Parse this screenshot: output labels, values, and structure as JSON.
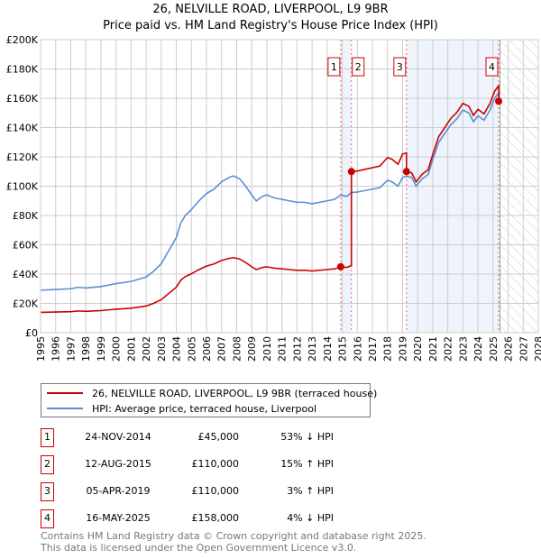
{
  "title": "26, NELVILLE ROAD, LIVERPOOL, L9 9BR",
  "subtitle": "Price paid vs. HM Land Registry's House Price Index (HPI)",
  "chart_data": {
    "type": "line",
    "xlim": [
      1995,
      2028
    ],
    "ylim": [
      0,
      200000
    ],
    "x_ticks": [
      "1995",
      "1996",
      "1997",
      "1998",
      "1999",
      "2000",
      "2001",
      "2002",
      "2003",
      "2004",
      "2005",
      "2006",
      "2007",
      "2008",
      "2009",
      "2010",
      "2011",
      "2012",
      "2013",
      "2014",
      "2015",
      "2016",
      "2017",
      "2018",
      "2019",
      "2020",
      "2021",
      "2022",
      "2023",
      "2024",
      "2025",
      "2026",
      "2027",
      "2028"
    ],
    "y_ticks": [
      {
        "v": 0,
        "label": "£0"
      },
      {
        "v": 20000,
        "label": "£20K"
      },
      {
        "v": 40000,
        "label": "£40K"
      },
      {
        "v": 60000,
        "label": "£60K"
      },
      {
        "v": 80000,
        "label": "£80K"
      },
      {
        "v": 100000,
        "label": "£100K"
      },
      {
        "v": 120000,
        "label": "£120K"
      },
      {
        "v": 140000,
        "label": "£140K"
      },
      {
        "v": 160000,
        "label": "£160K"
      },
      {
        "v": 180000,
        "label": "£180K"
      },
      {
        "v": 200000,
        "label": "£200K"
      }
    ],
    "grid": true,
    "hpi": {
      "name": "HPI: Average price, terraced house, Liverpool",
      "color": "#5b8fd4",
      "x": [
        1995,
        1996,
        1997,
        1997.5,
        1998,
        1999,
        2000,
        2001,
        2002,
        2002.5,
        2003,
        2003.5,
        2004,
        2004.3,
        2004.6,
        2005,
        2005.5,
        2006,
        2006.5,
        2007,
        2007.5,
        2007.8,
        2008.2,
        2008.6,
        2009,
        2009.3,
        2009.7,
        2010,
        2010.5,
        2011,
        2011.5,
        2012,
        2012.5,
        2013,
        2013.5,
        2014,
        2014.5,
        2014.9,
        2015.3,
        2015.6,
        2016,
        2016.5,
        2017,
        2017.5,
        2018,
        2018.3,
        2018.7,
        2019,
        2019.26,
        2019.6,
        2019.9,
        2020.3,
        2020.7,
        2021,
        2021.4,
        2021.8,
        2022.2,
        2022.6,
        2023,
        2023.4,
        2023.7,
        2024,
        2024.4,
        2024.8,
        2025.1,
        2025.4
      ],
      "y": [
        29000,
        29500,
        30000,
        31000,
        30500,
        31500,
        33500,
        35000,
        38000,
        42000,
        47000,
        56000,
        65000,
        75000,
        80000,
        84000,
        90000,
        95000,
        98000,
        103000,
        106000,
        107000,
        105000,
        100000,
        94000,
        90000,
        93000,
        94000,
        92000,
        91000,
        90000,
        89000,
        89000,
        88000,
        89000,
        90000,
        91000,
        94000,
        93000,
        95700,
        96000,
        97000,
        98000,
        99000,
        104000,
        103000,
        100000,
        106000,
        106800,
        106000,
        100000,
        105000,
        108000,
        118000,
        130000,
        136000,
        142000,
        146000,
        152000,
        150000,
        144000,
        148000,
        145000,
        152000,
        160000,
        164000
      ]
    },
    "property": {
      "name": "26, NELVILLE ROAD, LIVERPOOL, L9 9BR (terraced house)",
      "color": "#cc0000"
    },
    "sales": [
      {
        "n": "1",
        "x": 2014.9,
        "date": "24-NOV-2014",
        "price": 45000,
        "price_label": "£45,000",
        "hpi_label": "53% ↓ HPI"
      },
      {
        "n": "2",
        "x": 2015.61,
        "date": "12-AUG-2015",
        "price": 110000,
        "price_label": "£110,000",
        "hpi_label": "15% ↑ HPI"
      },
      {
        "n": "3",
        "x": 2019.26,
        "date": "05-APR-2019",
        "price": 110000,
        "price_label": "£110,000",
        "hpi_label": "3% ↑ HPI"
      },
      {
        "n": "4",
        "x": 2025.37,
        "date": "16-MAY-2025",
        "price": 158000,
        "price_label": "£158,000",
        "hpi_label": "4% ↓ HPI"
      }
    ]
  },
  "legend": {
    "property": "26, NELVILLE ROAD, LIVERPOOL, L9 9BR (terraced house)",
    "hpi": "HPI: Average price, terraced house, Liverpool"
  },
  "footer": {
    "line1": "Contains HM Land Registry data © Crown copyright and database right 2025.",
    "line2": "This data is licensed under the Open Government Licence v3.0."
  }
}
